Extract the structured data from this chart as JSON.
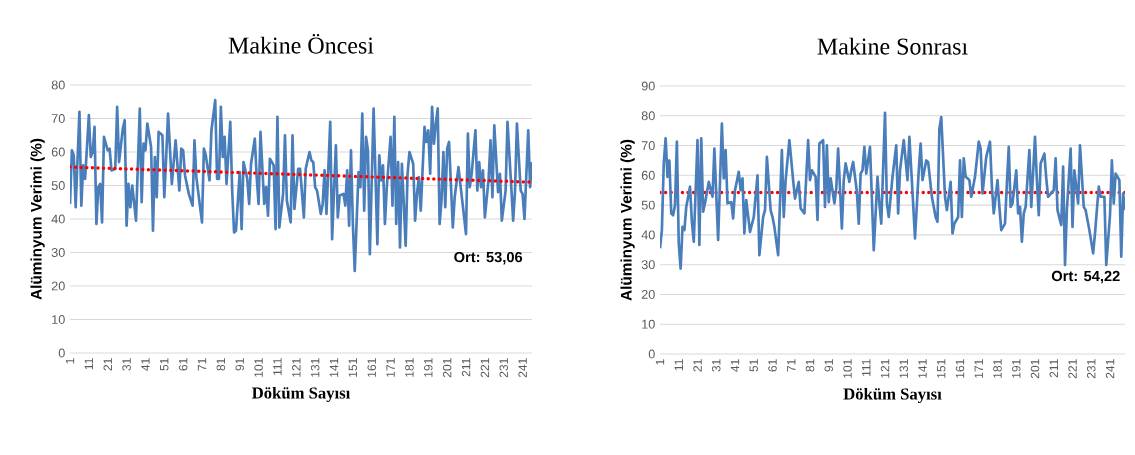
{
  "chart_data": [
    {
      "type": "line",
      "title": "Makine Öncesi",
      "xlabel": "Döküm Sayısı",
      "ylabel": "Alüminyum Verimi (%)",
      "xlim": [
        1,
        246
      ],
      "ylim": [
        0,
        80
      ],
      "xticks": [
        1,
        11,
        21,
        31,
        41,
        51,
        61,
        71,
        81,
        91,
        101,
        111,
        121,
        131,
        141,
        151,
        161,
        171,
        181,
        191,
        201,
        211,
        221,
        231,
        241
      ],
      "yticks": [
        0,
        10,
        20,
        30,
        40,
        50,
        60,
        70,
        80
      ],
      "grid": "y",
      "marker": "none",
      "line_style": "solid",
      "annotations": [
        "Ort: 53,06"
      ],
      "series": [
        {
          "color": "#4a7ebb",
          "x": [
            1,
            2,
            3,
            4,
            6,
            7,
            8,
            9,
            11,
            12,
            13,
            14,
            15,
            16,
            17,
            18,
            19,
            21,
            22,
            23,
            25,
            26,
            27,
            29,
            30,
            31,
            32,
            33,
            34,
            36,
            38,
            39,
            40,
            41,
            42,
            44,
            45,
            46,
            47,
            48,
            50,
            51,
            52,
            53,
            55,
            57,
            59,
            60,
            61,
            62,
            64,
            66,
            67,
            68,
            71,
            72,
            73,
            75,
            76,
            78,
            79,
            80,
            81,
            82,
            83,
            84,
            86,
            87,
            88,
            89,
            91,
            92,
            93,
            95,
            96,
            97,
            99,
            100,
            101,
            102,
            104,
            105,
            106,
            107,
            109,
            110,
            111,
            112,
            114,
            115,
            116,
            118,
            119,
            120,
            122,
            123,
            125,
            126,
            128,
            129,
            130,
            131,
            132,
            134,
            135,
            136,
            137,
            139,
            140,
            141,
            142,
            143,
            144,
            146,
            147,
            148,
            149,
            150,
            151,
            152,
            154,
            155,
            156,
            157,
            158,
            159,
            160,
            161,
            162,
            164,
            165,
            166,
            167,
            168,
            169,
            171,
            172,
            173,
            174,
            175,
            176,
            177,
            178,
            179,
            180,
            181,
            183,
            184,
            185,
            186,
            187,
            189,
            190,
            191,
            192,
            193,
            194,
            195,
            196,
            197,
            198,
            199,
            200,
            201,
            202,
            204,
            205,
            207,
            209,
            211,
            212,
            213,
            214,
            216,
            217,
            218,
            219,
            220,
            221,
            223,
            224,
            225,
            226,
            228,
            229,
            230,
            232,
            233,
            235,
            236,
            237,
            238,
            240,
            241,
            242,
            244,
            245,
            246
          ],
          "values": [
            44.5,
            60.5,
            59,
            43.5,
            72,
            44,
            56,
            52,
            71,
            58.5,
            60,
            67.5,
            38.5,
            49.5,
            50.5,
            39,
            64.5,
            60.5,
            61,
            54.5,
            55,
            73.5,
            57,
            67,
            69.5,
            38,
            50.5,
            43.5,
            50,
            39.5,
            73,
            45,
            62.5,
            60.5,
            68.5,
            61.5,
            36.5,
            58.5,
            46.5,
            66,
            65,
            46.5,
            58.5,
            71.5,
            50.5,
            63.5,
            48.5,
            61,
            60.5,
            53,
            47.5,
            44,
            63.5,
            52.5,
            39,
            61,
            59,
            51.5,
            66.5,
            75.5,
            52,
            52,
            73.5,
            58.5,
            64.5,
            50.5,
            69,
            48.5,
            36,
            36.5,
            54,
            37,
            57,
            52,
            44.5,
            56.5,
            64,
            52.5,
            44.5,
            66,
            44.5,
            49.5,
            41,
            58,
            56,
            37,
            70.5,
            37.5,
            47.5,
            65,
            45.5,
            39,
            65,
            43,
            55,
            55,
            40.5,
            55,
            60,
            57.5,
            57,
            49.5,
            48.5,
            41.5,
            44.5,
            54.5,
            41.5,
            69,
            34,
            48.5,
            62,
            40.5,
            47,
            47.5,
            44,
            54.5,
            38,
            60.5,
            38.5,
            24.5,
            54,
            49.5,
            71.5,
            42.5,
            64.5,
            60.5,
            29.5,
            51.5,
            73,
            32.5,
            59,
            51.5,
            56,
            38.5,
            49.5,
            64.5,
            44,
            70.5,
            38.5,
            57,
            31.5,
            56.5,
            44.5,
            32,
            53.5,
            60,
            56.5,
            39.5,
            47.5,
            52.5,
            42.5,
            67.5,
            63,
            66.5,
            53.5,
            73.5,
            62.5,
            68.5,
            73,
            38.5,
            45.5,
            60,
            43.5,
            61,
            63,
            37.5,
            46.5,
            55.5,
            45.5,
            35.5,
            65.5,
            49.5,
            53.5,
            66.5,
            48.5,
            57,
            49.5,
            54.5,
            40.5,
            52,
            63.5,
            46.5,
            68,
            48,
            53.5,
            39.5,
            48.5,
            69,
            49.5,
            39.5,
            48.5,
            68.5,
            48.5,
            47.5,
            40,
            66.5,
            49.5,
            57
          ]
        },
        {
          "color": "#ff0000",
          "line_style": "dotted",
          "x": [
            1,
            246
          ],
          "values": [
            55.5,
            51
          ]
        }
      ]
    },
    {
      "type": "line",
      "title": "Makine Sonrası",
      "xlabel": "Döküm Sayısı",
      "ylabel": "Alüminyum Verimi (%)",
      "xlim": [
        1,
        249
      ],
      "ylim": [
        0,
        90
      ],
      "xticks": [
        1,
        11,
        21,
        31,
        41,
        51,
        61,
        71,
        81,
        91,
        101,
        111,
        121,
        131,
        141,
        151,
        161,
        171,
        181,
        191,
        201,
        211,
        221,
        231,
        241
      ],
      "yticks": [
        0,
        10,
        20,
        30,
        40,
        50,
        60,
        70,
        80,
        90
      ],
      "grid": "y",
      "marker": "none",
      "line_style": "solid",
      "annotations": [
        "Ort: 54,22"
      ],
      "ref_lines": [
        {
          "axis": "y",
          "value": 54.22,
          "color": "#ff0000",
          "line_style": "dotted"
        }
      ],
      "series": [
        {
          "color": "#4a7ebb",
          "x": [
            1,
            2,
            3,
            4,
            5,
            6,
            7,
            8,
            9,
            10,
            11,
            12,
            13,
            14,
            15,
            17,
            18,
            19,
            21,
            22,
            23,
            24,
            25,
            27,
            29,
            30,
            32,
            34,
            35,
            36,
            37,
            39,
            40,
            41,
            43,
            44,
            45,
            46,
            47,
            49,
            51,
            53,
            54,
            56,
            57,
            58,
            60,
            61,
            62,
            64,
            66,
            67,
            68,
            70,
            72,
            73,
            75,
            76,
            78,
            80,
            81,
            82,
            84,
            85,
            86,
            88,
            89,
            90,
            91,
            92,
            94,
            95,
            96,
            98,
            99,
            100,
            102,
            103,
            104,
            106,
            107,
            108,
            109,
            110,
            111,
            113,
            115,
            117,
            118,
            119,
            121,
            122,
            123,
            125,
            127,
            128,
            129,
            131,
            133,
            134,
            136,
            137,
            139,
            140,
            141,
            143,
            144,
            146,
            148,
            149,
            150,
            151,
            153,
            154,
            156,
            157,
            158,
            160,
            161,
            162,
            163,
            164,
            166,
            167,
            169,
            171,
            172,
            173,
            175,
            177,
            178,
            179,
            181,
            182,
            183,
            185,
            186,
            187,
            188,
            189,
            191,
            192,
            193,
            194,
            195,
            196,
            198,
            199,
            201,
            202,
            203,
            204,
            206,
            207,
            208,
            211,
            212,
            213,
            215,
            216,
            217,
            218,
            220,
            221,
            222,
            224,
            225,
            227,
            228,
            230,
            232,
            233,
            235,
            236,
            238,
            239,
            241,
            242,
            243,
            244,
            246,
            247,
            248,
            249
          ],
          "values": [
            35.5,
            41.6,
            64,
            72.4,
            59.5,
            65,
            47.2,
            46.6,
            50,
            71.3,
            37,
            28.7,
            42.7,
            41.6,
            49.4,
            56.2,
            44.4,
            37.7,
            71.8,
            36.6,
            72.4,
            47.8,
            50.6,
            57.8,
            52.8,
            69,
            38.3,
            77.4,
            59,
            68.5,
            50.6,
            51,
            45.5,
            55,
            61.2,
            55,
            59,
            40.5,
            51.7,
            41,
            46,
            60,
            33.2,
            46,
            48.3,
            66.2,
            48.3,
            46,
            42.7,
            33.2,
            68.5,
            46,
            58.4,
            71.8,
            58.4,
            52.2,
            57.8,
            48.9,
            47.2,
            71.8,
            58.4,
            61.7,
            59.5,
            45,
            70.7,
            71.8,
            49.4,
            70.1,
            51,
            59,
            50.6,
            55.6,
            69,
            42.2,
            58.4,
            64,
            57.8,
            61.7,
            64.5,
            54.5,
            43.8,
            60.6,
            61.7,
            69.6,
            60.6,
            69.6,
            34.9,
            59.5,
            50.6,
            43.8,
            81,
            50.6,
            46,
            59.5,
            70.1,
            47.2,
            61.7,
            71.8,
            58.4,
            72.9,
            50.6,
            38.8,
            61.7,
            70.7,
            58.4,
            65,
            64.5,
            52.8,
            46,
            44.4,
            75.7,
            79.6,
            52.8,
            48.3,
            57.8,
            40.5,
            43.8,
            46,
            65,
            46,
            65.7,
            59.5,
            58.4,
            52.8,
            59.5,
            71.3,
            69,
            53.9,
            66.2,
            71.3,
            56.2,
            47.2,
            58.4,
            49.4,
            41.6,
            43.8,
            57.3,
            69.6,
            49.4,
            50.6,
            61.7,
            47.2,
            49.4,
            37.7,
            47.2,
            49.4,
            68.5,
            49.4,
            72.9,
            58.4,
            46.6,
            64,
            67.3,
            59,
            52.8,
            55,
            65.7,
            48.3,
            43.3,
            62.9,
            29.9,
            48.3,
            69,
            42.7,
            61.7,
            50.6,
            70.1,
            49.4,
            48.3,
            41.6,
            33.8,
            40.5,
            56.2,
            52.8,
            52.8,
            29.9,
            46.6,
            65,
            50.6,
            60.6,
            58.4,
            32.7,
            53.9,
            48.3
          ]
        }
      ]
    }
  ]
}
